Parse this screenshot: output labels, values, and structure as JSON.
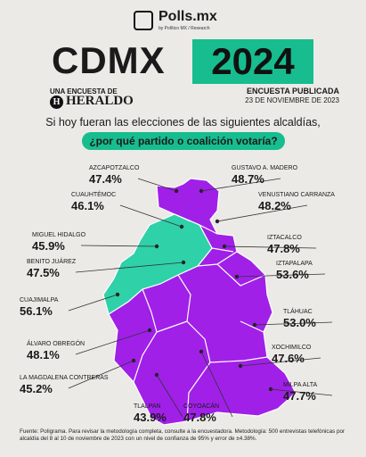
{
  "brand": {
    "name": "Polls.mx",
    "sub": "by Político MX / Research"
  },
  "title": {
    "left": "CDMX",
    "right": "2024"
  },
  "sponsor": {
    "line1": "UNA ENCUESTA DE",
    "name": "HERALDO"
  },
  "published": {
    "label": "ENCUESTA PUBLICADA",
    "date": "23 DE NOVIEMBRE DE 2023"
  },
  "question": {
    "line1": "Si hoy fueran las elecciones de las siguientes alcaldías,",
    "line2": "¿por qué partido o coalición votaría?"
  },
  "footer": {
    "text": "Fuente: Poligrama. Para revisar la metodología completa, consulte a la encuestadora. Metodología: 500 entrevistas telefónicas por alcaldía del 8 al 10 de noviembre de 2023 con un nivel de confianza de 95% y error de ±4.38%."
  },
  "colors": {
    "morena_coalition": "#a020e8",
    "opposition": "#2fd1a8",
    "accent": "#17bd8e"
  },
  "chart_data": {
    "type": "map",
    "unit": "%",
    "alcaldias": [
      {
        "name": "AZCAPOTZALCO",
        "value": 47.4,
        "winner": "morena_coalition"
      },
      {
        "name": "GUSTAVO A. MADERO",
        "value": 48.7,
        "winner": "morena_coalition"
      },
      {
        "name": "CUAUHTÉMOC",
        "value": 46.1,
        "winner": "opposition"
      },
      {
        "name": "VENUSTIANO CARRANZA",
        "value": 48.2,
        "winner": "morena_coalition"
      },
      {
        "name": "MIGUEL HIDALGO",
        "value": 45.9,
        "winner": "opposition"
      },
      {
        "name": "IZTACALCO",
        "value": 47.8,
        "winner": "morena_coalition"
      },
      {
        "name": "BENITO JUÁREZ",
        "value": 47.5,
        "winner": "opposition"
      },
      {
        "name": "IZTAPALAPA",
        "value": 53.6,
        "winner": "morena_coalition"
      },
      {
        "name": "CUAJIMALPA",
        "value": 56.1,
        "winner": "opposition"
      },
      {
        "name": "TLÁHUAC",
        "value": 53.0,
        "winner": "morena_coalition"
      },
      {
        "name": "ÁLVARO OBREGÓN",
        "value": 48.1,
        "winner": "opposition"
      },
      {
        "name": "XOCHIMILCO",
        "value": 47.6,
        "winner": "morena_coalition"
      },
      {
        "name": "LA MAGDALENA CONTRERAS",
        "value": 45.2,
        "winner": "morena_coalition"
      },
      {
        "name": "MILPA ALTA",
        "value": 47.7,
        "winner": "morena_coalition"
      },
      {
        "name": "TLALPAN",
        "value": 43.9,
        "winner": "morena_coalition"
      },
      {
        "name": "COYOACÁN",
        "value": 47.8,
        "winner": "morena_coalition"
      }
    ]
  }
}
